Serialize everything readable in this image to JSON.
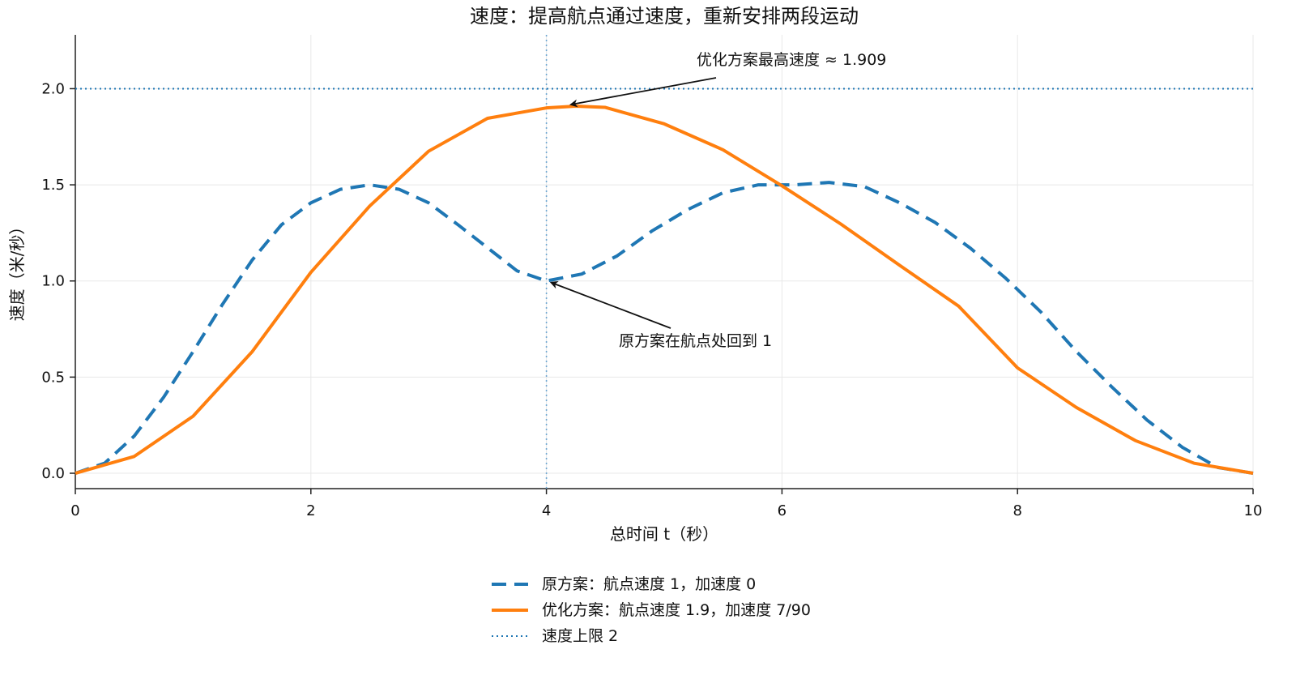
{
  "chart_data": {
    "type": "line",
    "title": "速度：提高航点通过速度，重新安排两段运动",
    "xlabel": "总时间 t（秒）",
    "ylabel": "速度（米/秒）",
    "xlim": [
      0,
      10
    ],
    "ylim": [
      -0.08,
      2.28
    ],
    "x_ticks": [
      0,
      2,
      4,
      6,
      8,
      10
    ],
    "y_ticks": [
      0.0,
      0.5,
      1.0,
      1.5,
      2.0
    ],
    "x_tick_labels": [
      "0",
      "2",
      "4",
      "6",
      "8",
      "10"
    ],
    "y_tick_labels": [
      "0.0",
      "0.5",
      "1.0",
      "1.5",
      "2.0"
    ],
    "grid": true,
    "legend_position": "bottom-center",
    "series": [
      {
        "name": "原方案：航点速度 1，加速度 0",
        "color": "#1f77b4",
        "style": "dashed",
        "x": [
          0,
          0.25,
          0.5,
          0.75,
          1.0,
          1.25,
          1.5,
          1.75,
          2.0,
          2.25,
          2.5,
          2.75,
          3.0,
          3.25,
          3.5,
          3.75,
          4.0,
          4.3,
          4.6,
          4.9,
          5.2,
          5.5,
          5.8,
          6.1,
          6.4,
          6.7,
          7.0,
          7.3,
          7.6,
          7.9,
          8.2,
          8.5,
          8.8,
          9.1,
          9.4,
          9.7,
          10.0
        ],
        "values": [
          0.0,
          0.0527,
          0.1934,
          0.3955,
          0.6328,
          0.8789,
          1.1074,
          1.292,
          1.4063,
          1.4766,
          1.5,
          1.4766,
          1.4063,
          1.292,
          1.1728,
          1.0527,
          1.0,
          1.0359,
          1.1304,
          1.2615,
          1.3712,
          1.459,
          1.5,
          1.4998,
          1.5123,
          1.4906,
          1.4063,
          1.3042,
          1.1707,
          1.0141,
          0.8375,
          0.6328,
          0.4492,
          0.2765,
          0.1347,
          0.0298,
          0.0
        ]
      },
      {
        "name": "优化方案：航点速度 1.9，加速度 7/90",
        "color": "#ff7f0e",
        "style": "solid",
        "x": [
          0,
          0.5,
          1.0,
          1.5,
          2.0,
          2.5,
          3.0,
          3.5,
          4.0,
          4.25,
          4.5,
          5.0,
          5.5,
          6.0,
          6.5,
          7.0,
          7.5,
          8.0,
          8.5,
          9.0,
          9.5,
          10.0
        ],
        "values": [
          0.0,
          0.0874,
          0.2967,
          0.6311,
          1.045,
          1.39,
          1.675,
          1.846,
          1.9,
          1.909,
          1.9027,
          1.817,
          1.682,
          1.495,
          1.296,
          1.081,
          0.869,
          0.548,
          0.342,
          0.17,
          0.052,
          0.0
        ]
      },
      {
        "name": "速度上限 2",
        "color": "#1f77b4",
        "style": "dotted",
        "x": [
          0,
          10
        ],
        "values": [
          2.0,
          2.0
        ]
      }
    ],
    "vertical_reference_x": 4,
    "annotations": [
      {
        "text": "优化方案最高速度 ≈ 1.909",
        "target_x": 4.25,
        "target_y": 1.909
      },
      {
        "text": "原方案在航点处回到 1",
        "target_x": 4.0,
        "target_y": 1.0
      }
    ]
  }
}
